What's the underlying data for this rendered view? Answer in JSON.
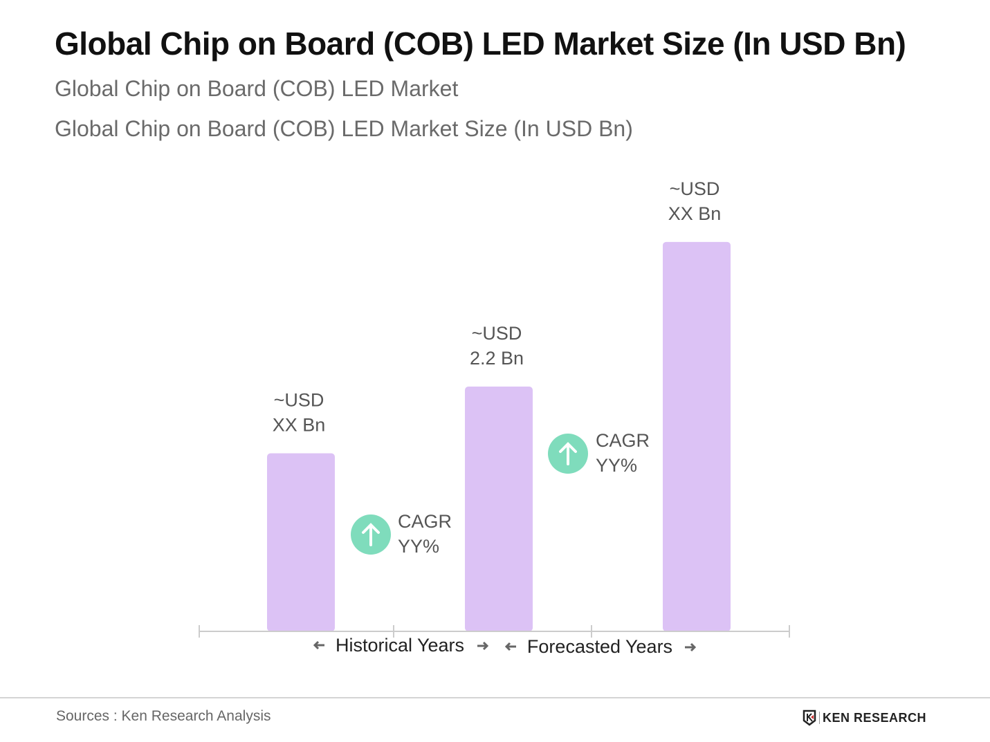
{
  "chart_data": {
    "type": "bar",
    "title": "Global Chip on Board (COB) LED Market Size (In USD Bn)",
    "subtitles": [
      "Global Chip on Board (COB) LED Market",
      "Global Chip on Board (COB) LED Market Size (In USD Bn)"
    ],
    "categories": [
      "",
      "",
      ""
    ],
    "values": [
      1.6,
      2.2,
      3.5
    ],
    "data_labels": [
      [
        "~USD",
        "XX Bn"
      ],
      [
        "~USD",
        "2.2 Bn"
      ],
      [
        "~USD",
        "XX Bn"
      ]
    ],
    "cagr_annotations": [
      [
        "CAGR",
        "YY%"
      ],
      [
        "CAGR",
        "YY%"
      ]
    ],
    "period_labels": [
      "Historical Years",
      "Forecasted Years"
    ],
    "xlabel": "",
    "ylabel": "",
    "grid": false,
    "colors": {
      "bar": "#dcc2f5",
      "cagr_icon": "#7fdcbc",
      "axis": "#cccccc"
    }
  },
  "footer": {
    "source": "Sources : Ken Research Analysis",
    "logo_text": "KEN RESEARCH"
  }
}
